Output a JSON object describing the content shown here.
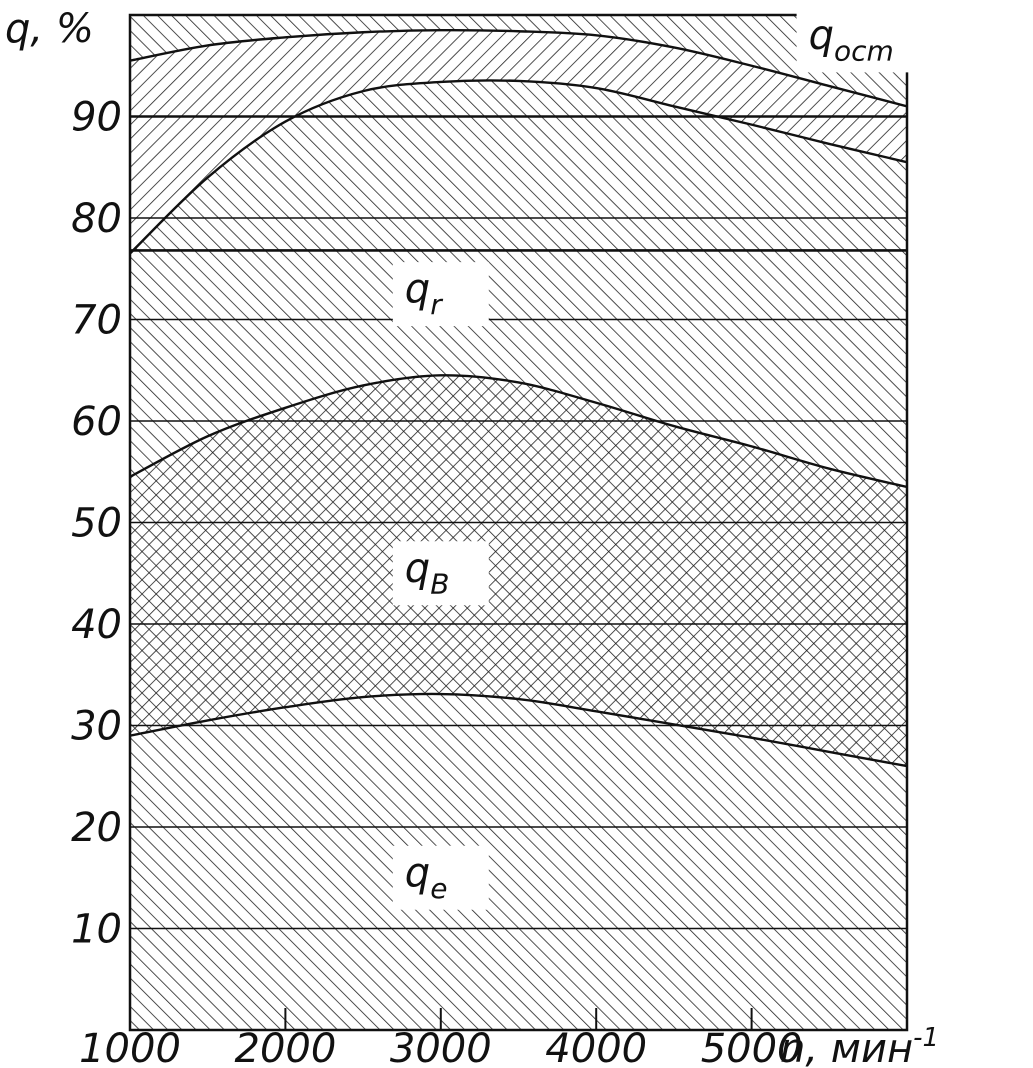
{
  "chart_data": {
    "type": "area",
    "x_label": "n, мин",
    "x_label_exp": "-1",
    "y_label": "q, %",
    "x_ticks": [
      1000,
      2000,
      3000,
      4000,
      5000
    ],
    "x_tick_labels": [
      "1000",
      "2000",
      "3000",
      "4000",
      "5000"
    ],
    "y_ticks": [
      10,
      20,
      30,
      40,
      50,
      60,
      70,
      80,
      90
    ],
    "y_tick_labels": [
      "10",
      "20",
      "30",
      "40",
      "50",
      "60",
      "70",
      "80",
      "90"
    ],
    "xlim": [
      1000,
      6000
    ],
    "ylim": [
      0,
      100
    ],
    "grid": "horizontal",
    "x": [
      1000,
      1500,
      2000,
      2500,
      3000,
      3500,
      4000,
      4500,
      5000,
      5500,
      6000
    ],
    "series": [
      {
        "key": "qe",
        "label": "q",
        "sub": "e",
        "values": [
          29,
          30.5,
          31.8,
          32.8,
          33.1,
          32.6,
          31.4,
          30.1,
          28.8,
          27.4,
          26
        ]
      },
      {
        "key": "qB",
        "label": "q",
        "sub": "B",
        "values": [
          54.5,
          58.5,
          61.3,
          63.5,
          64.5,
          63.8,
          61.8,
          59.5,
          57.5,
          55.3,
          53.5
        ]
      },
      {
        "key": "qr",
        "label": "q",
        "sub": "r",
        "values": [
          76.5,
          84,
          89.5,
          92.5,
          93.4,
          93.5,
          92.8,
          91,
          89.2,
          87.3,
          85.5
        ]
      },
      {
        "key": "qocm",
        "label": "q",
        "sub": "ocm",
        "values": [
          95.5,
          97,
          97.8,
          98.3,
          98.5,
          98.4,
          98,
          96.8,
          95,
          93,
          91
        ]
      }
    ],
    "constant_lines": [
      76.8,
      90
    ],
    "region_labels": [
      {
        "key": "qe",
        "text": "q",
        "sub": "e",
        "x": 3000,
        "y": 15
      },
      {
        "key": "qB",
        "text": "q",
        "sub": "B",
        "x": 3000,
        "y": 45
      },
      {
        "key": "qr",
        "text": "q",
        "sub": "r",
        "x": 3000,
        "y": 72.5
      },
      {
        "key": "qocm",
        "text": "q",
        "sub": "ocm",
        "x": 5650,
        "y": 97.5
      }
    ]
  }
}
